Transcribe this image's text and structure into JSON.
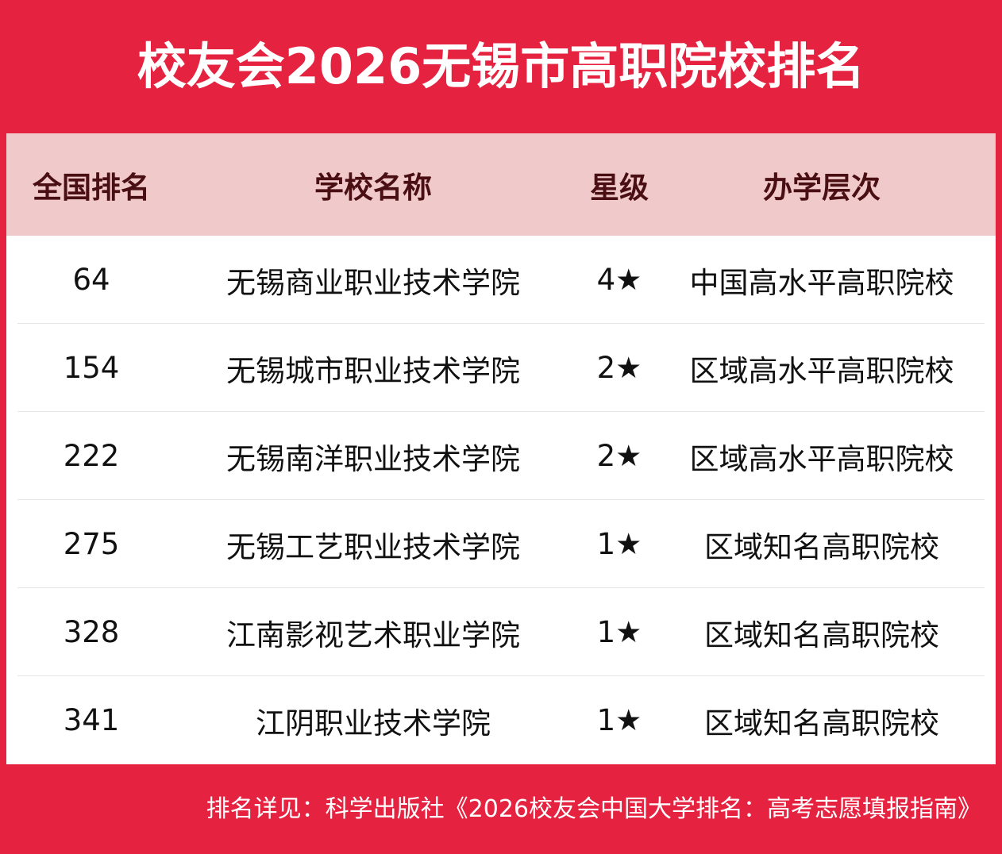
{
  "header": {
    "title": "校友会2026无锡市高职院校排名"
  },
  "table": {
    "columns": [
      "全国排名",
      "学校名称",
      "星级",
      "办学层次"
    ],
    "rows": [
      [
        "64",
        "无锡商业职业技术学院",
        "4★",
        "中国高水平高职院校"
      ],
      [
        "154",
        "无锡城市职业技术学院",
        "2★",
        "区域高水平高职院校"
      ],
      [
        "222",
        "无锡南洋职业技术学院",
        "2★",
        "区域高水平高职院校"
      ],
      [
        "275",
        "无锡工艺职业技术学院",
        "1★",
        "区域知名高职院校"
      ],
      [
        "328",
        "江南影视艺术职业学院",
        "1★",
        "区域知名高职院校"
      ],
      [
        "341",
        "江阴职业技术学院",
        "1★",
        "区域知名高职院校"
      ]
    ]
  },
  "footer": {
    "note": "排名详见：科学出版社《2026校友会中国大学排名：高考志愿填报指南》"
  }
}
